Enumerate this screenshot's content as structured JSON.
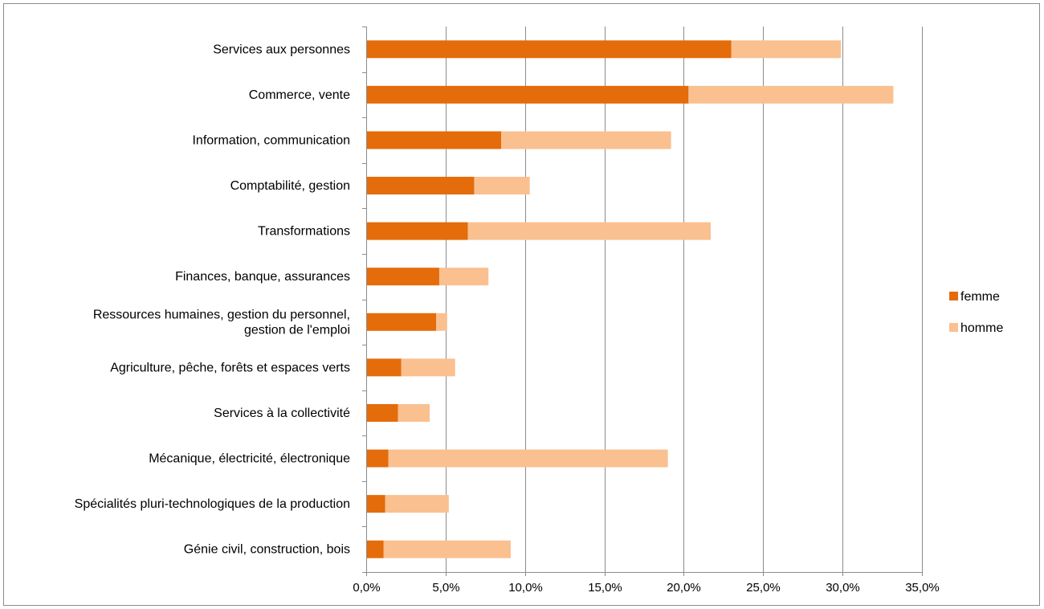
{
  "chart_data": {
    "type": "bar",
    "orientation": "horizontal",
    "stacked": true,
    "categories": [
      "Services aux personnes",
      "Commerce, vente",
      "Information, communication",
      "Comptabilité, gestion",
      "Transformations",
      "Finances, banque, assurances",
      "Ressources humaines, gestion du personnel, gestion de l'emploi",
      "Agriculture, pêche, forêts et espaces verts",
      "Services à la collectivité",
      "Mécanique, électricité, électronique",
      "Spécialités pluri-technologiques de la production",
      "Génie civil, construction, bois"
    ],
    "category_label_lines": [
      [
        "Services aux personnes"
      ],
      [
        "Commerce, vente"
      ],
      [
        "Information, communication"
      ],
      [
        "Comptabilité, gestion"
      ],
      [
        "Transformations"
      ],
      [
        "Finances, banque, assurances"
      ],
      [
        "Ressources humaines, gestion du personnel,",
        "gestion de l'emploi"
      ],
      [
        "Agriculture, pêche, forêts et espaces verts"
      ],
      [
        "Services à la collectivité"
      ],
      [
        "Mécanique, électricité, électronique"
      ],
      [
        "Spécialités pluri-technologiques de la production"
      ],
      [
        "Génie civil, construction, bois"
      ]
    ],
    "series": [
      {
        "name": "femme",
        "color": "#e46c0a",
        "values": [
          23.0,
          20.3,
          8.5,
          6.8,
          6.4,
          4.6,
          4.4,
          2.2,
          2.0,
          1.4,
          1.2,
          1.1
        ]
      },
      {
        "name": "homme",
        "color": "#fac090",
        "values": [
          6.9,
          12.9,
          10.7,
          3.5,
          15.3,
          3.1,
          0.7,
          3.4,
          2.0,
          17.6,
          4.0,
          8.0
        ]
      }
    ],
    "xlim": [
      0,
      35
    ],
    "xticks": [
      0,
      5,
      10,
      15,
      20,
      25,
      30,
      35
    ],
    "xtick_labels": [
      "0,0%",
      "5,0%",
      "10,0%",
      "15,0%",
      "20,0%",
      "25,0%",
      "30,0%",
      "35,0%"
    ],
    "grid": "vertical",
    "legend": "right",
    "title": "",
    "xlabel": "",
    "ylabel": ""
  }
}
